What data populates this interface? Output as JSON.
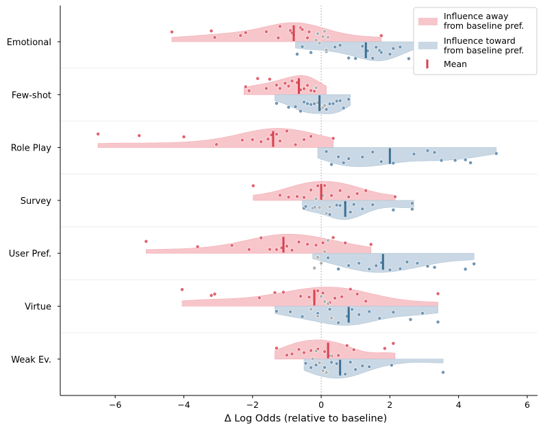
{
  "chart_data": {
    "type": "raincloud",
    "xlabel": "Δ Log Odds (relative to baseline)",
    "xlim": [
      -7.6,
      6.3
    ],
    "xticks": [
      -6,
      -4,
      -2,
      0,
      2,
      4,
      6
    ],
    "xtick_labels": [
      "−6",
      "−4",
      "−2",
      "0",
      "2",
      "4",
      "6"
    ],
    "reference_line_x": 0,
    "legend": {
      "position": "top-right",
      "entries": [
        {
          "key": "away",
          "line1": "Influence away",
          "line2": "from baseline pref."
        },
        {
          "key": "toward",
          "line1": "Influence toward",
          "line2": "from baseline pref."
        },
        {
          "key": "mean",
          "line1": "Mean",
          "line2": ""
        }
      ]
    },
    "colors": {
      "away_fill": "#f7c6cb",
      "away_point": "#e06470",
      "away_mean": "#d9404f",
      "toward_fill": "#c9d8e4",
      "toward_point": "#6f95b4",
      "toward_mean": "#3d6f94",
      "neutral_point": "#b0b0b0"
    },
    "categories": [
      {
        "label": "Emotional",
        "away": {
          "mean": -0.8,
          "range": [
            -4.35,
            1.75
          ],
          "peak": -0.25,
          "points": [
            -4.35,
            -3.2,
            -3.1,
            -2.35,
            -2.2,
            -1.6,
            -1.25,
            -1.2,
            -0.9,
            -0.85,
            -0.8,
            -0.6,
            -0.55,
            -0.4,
            -0.35,
            1.75
          ]
        },
        "toward": {
          "mean": 1.3,
          "range": [
            -0.75,
            2.85
          ],
          "peak": 1.7,
          "points": [
            -0.7,
            -0.55,
            -0.3,
            0.15,
            0.4,
            0.55,
            0.8,
            1.0,
            1.2,
            1.35,
            1.5,
            1.6,
            1.7,
            1.75,
            2.0,
            2.1,
            2.3,
            2.55
          ]
        },
        "neutral": [
          -0.15,
          -0.1,
          -0.05,
          0.05,
          0.1,
          0.15,
          0.2
        ]
      },
      {
        "label": "Few-shot",
        "away": {
          "mean": -0.65,
          "range": [
            -2.25,
            0.15
          ],
          "peak": -0.3,
          "points": [
            -2.2,
            -2.1,
            -1.85,
            -1.6,
            -1.5,
            -1.3,
            -1.2,
            -1.05,
            -0.95,
            -0.85,
            -0.7,
            -0.6,
            -0.5,
            -0.4,
            -0.3,
            -0.2
          ]
        },
        "toward": {
          "mean": -0.05,
          "range": [
            -1.35,
            0.85
          ],
          "peak": 0.0,
          "points": [
            -1.3,
            -0.95,
            -0.75,
            -0.6,
            -0.5,
            -0.4,
            -0.3,
            -0.2,
            0.15,
            0.25,
            0.35,
            0.45,
            0.55,
            0.65,
            0.8
          ]
        },
        "neutral": [
          -0.15,
          -0.1,
          -0.05,
          0.0,
          0.05,
          0.1
        ]
      },
      {
        "label": "Role Play",
        "away": {
          "mean": -1.4,
          "range": [
            -6.5,
            0.35
          ],
          "peak": -1.2,
          "points": [
            -6.5,
            -5.3,
            -4.0,
            -3.05,
            -2.3,
            -2.0,
            -1.75,
            -1.55,
            -1.45,
            -1.3,
            -1.2,
            -1.0,
            -0.75,
            -0.5,
            -0.3,
            0.35
          ]
        },
        "toward": {
          "mean": 2.0,
          "range": [
            -0.1,
            5.1
          ],
          "peak": 1.5,
          "points": [
            0.15,
            0.3,
            0.5,
            0.65,
            0.8,
            1.2,
            1.5,
            1.75,
            2.1,
            2.7,
            3.1,
            3.3,
            3.5,
            3.9,
            4.2,
            4.35,
            5.1
          ]
        },
        "neutral": []
      },
      {
        "label": "Survey",
        "away": {
          "mean": 0.0,
          "range": [
            -1.98,
            2.15
          ],
          "peak": 0.2,
          "points": [
            -1.98,
            -1.2,
            -0.95,
            -0.7,
            -0.5,
            -0.3,
            -0.1,
            0.1,
            0.3,
            0.55,
            0.8,
            1.05,
            1.3,
            2.15
          ]
        },
        "toward": {
          "mean": 0.7,
          "range": [
            -0.55,
            2.7
          ],
          "peak": 0.6,
          "points": [
            -0.5,
            -0.45,
            -0.2,
            0.25,
            0.45,
            0.55,
            0.7,
            0.85,
            0.95,
            1.2,
            1.5,
            2.1,
            2.65,
            2.65
          ]
        },
        "neutral": [
          -0.25,
          -0.15,
          -0.05,
          0.05,
          0.15,
          0.25
        ]
      },
      {
        "label": "User Pref.",
        "away": {
          "mean": -1.1,
          "range": [
            -5.1,
            1.45
          ],
          "peak": -1.1,
          "points": [
            -5.1,
            -3.6,
            -2.6,
            -2.1,
            -1.75,
            -1.5,
            -1.3,
            -1.15,
            -1.0,
            -0.85,
            -0.65,
            -0.4,
            -0.15,
            0.05,
            0.35,
            0.7,
            1.45
          ]
        },
        "toward": {
          "mean": 1.8,
          "range": [
            -0.25,
            4.45
          ],
          "peak": 1.6,
          "points": [
            0.2,
            0.5,
            0.8,
            1.1,
            1.4,
            1.6,
            1.75,
            2.0,
            2.3,
            2.5,
            2.8,
            3.1,
            3.3,
            4.2,
            4.45
          ]
        },
        "neutral": [
          -0.2,
          -0.1,
          0.0,
          0.1,
          0.2
        ]
      },
      {
        "label": "Virtue",
        "away": {
          "mean": -0.2,
          "range": [
            -4.05,
            3.4
          ],
          "peak": 0.3,
          "points": [
            -4.05,
            -3.2,
            -3.1,
            -1.8,
            -1.35,
            -1.1,
            -0.6,
            -0.35,
            -0.1,
            0.05,
            0.25,
            0.4,
            0.6,
            0.85,
            1.05,
            1.3,
            3.4
          ]
        },
        "toward": {
          "mean": 0.8,
          "range": [
            -1.35,
            3.4
          ],
          "peak": 0.5,
          "points": [
            -1.3,
            -0.9,
            -0.55,
            -0.1,
            0.25,
            0.5,
            0.75,
            0.9,
            1.1,
            1.4,
            1.7,
            2.1,
            2.6,
            2.95,
            3.4
          ]
        },
        "neutral": [
          -0.3,
          -0.2,
          -0.1,
          0.0,
          0.1,
          0.2,
          0.3
        ]
      },
      {
        "label": "Weak Ev.",
        "away": {
          "mean": 0.2,
          "range": [
            -1.35,
            2.15
          ],
          "peak": 0.0,
          "points": [
            -1.3,
            -1.0,
            -0.85,
            -0.65,
            -0.5,
            -0.3,
            -0.1,
            0.1,
            0.3,
            0.5,
            0.75,
            0.95,
            1.85,
            2.1
          ]
        },
        "toward": {
          "mean": 0.55,
          "range": [
            -0.5,
            3.55
          ],
          "peak": 0.3,
          "points": [
            -0.45,
            -0.3,
            -0.15,
            0.1,
            0.3,
            0.45,
            0.55,
            0.7,
            0.85,
            1.0,
            1.2,
            1.4,
            2.05,
            3.55
          ]
        },
        "neutral": [
          -0.25,
          -0.15,
          -0.05,
          0.05,
          0.15,
          0.25
        ]
      }
    ]
  }
}
